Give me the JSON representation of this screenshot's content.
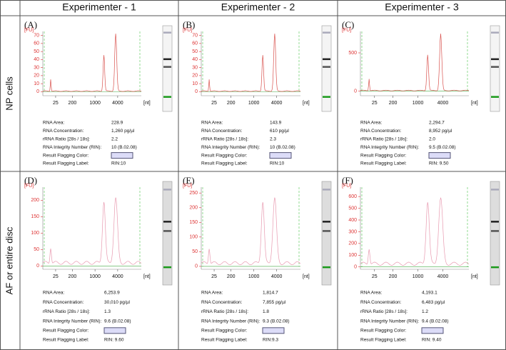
{
  "header": {
    "columns": [
      "Experimenter - 1",
      "Experimenter - 2",
      "Experimenter - 3"
    ]
  },
  "rows": [
    {
      "label": "NP cells",
      "panels": [
        {
          "label": "(A)",
          "yunit": "[FU]",
          "yticks": [
            0,
            10,
            20,
            30,
            40,
            50,
            60,
            70
          ],
          "ylim": [
            -5,
            75
          ],
          "xticks": [
            "25",
            "200",
            "1000",
            "4000"
          ],
          "xunit": "[nt]",
          "fields": [
            {
              "name": "RNA Area:",
              "value": "228.9"
            },
            {
              "name": "RNA Concentration:",
              "value": "1,260 pg/µl"
            },
            {
              "name": "rRNA Ratio [28s / 18s]:",
              "value": "2.2"
            },
            {
              "name": "RNA Integrity Number (RIN):",
              "value": "10    (B.02.08)"
            },
            {
              "name": "Result Flagging Color:",
              "swatch": "#dcdcf8"
            },
            {
              "name": "Result Flagging Label:",
              "value": "RIN:10"
            }
          ]
        },
        {
          "label": "(B)",
          "yunit": "[FU]",
          "yticks": [
            0,
            10,
            20,
            30,
            40,
            50,
            60,
            70
          ],
          "ylim": [
            -5,
            75
          ],
          "xticks": [
            "25",
            "200",
            "1000",
            "4000"
          ],
          "xunit": "[nt]",
          "fields": [
            {
              "name": "RNA Area:",
              "value": "143.9"
            },
            {
              "name": "RNA Concentration:",
              "value": "610 pg/µl"
            },
            {
              "name": "rRNA Ratio [28s / 18s]:",
              "value": "2.3"
            },
            {
              "name": "RNA Integrity Number (RIN):",
              "value": "10    (B.02.08)"
            },
            {
              "name": "Result Flagging Color:",
              "swatch": "#dcdcf8"
            },
            {
              "name": "Result Flagging Label:",
              "value": "RIN:10"
            }
          ]
        },
        {
          "label": "(C)",
          "yunit": "[FU]",
          "yticks": [
            0,
            500
          ],
          "ylim": [
            -60,
            780
          ],
          "xticks": [
            "25",
            "200",
            "1000",
            "4000"
          ],
          "xunit": "[nt]",
          "fields": [
            {
              "name": "RNA Area:",
              "value": "2,294.7"
            },
            {
              "name": "RNA Concentration:",
              "value": "8,952 pg/µl"
            },
            {
              "name": "rRNA Ratio [28s / 18s]:",
              "value": "2.0"
            },
            {
              "name": "RNA Integrity Number (RIN):",
              "value": "9.5    (B.02.08)"
            },
            {
              "name": "Result Flagging Color:",
              "swatch": "#dcdcf8"
            },
            {
              "name": "Result Flagging Label:",
              "value": "RIN: 9.50"
            }
          ]
        }
      ]
    },
    {
      "label": "AF or entire disc",
      "panels": [
        {
          "label": "(D)",
          "yunit": "[FU]",
          "yticks": [
            0,
            50,
            100,
            150,
            200
          ],
          "ylim": [
            -10,
            240
          ],
          "xticks": [
            "25",
            "200",
            "1000",
            "4000"
          ],
          "xunit": "[nt]",
          "fields": [
            {
              "name": "RNA Area:",
              "value": "6,253.9"
            },
            {
              "name": "RNA Concentration:",
              "value": "30,010 pg/µl"
            },
            {
              "name": "rRNA Ratio [28s / 18s]:",
              "value": "1.3"
            },
            {
              "name": "RNA Integrity Number (RIN):",
              "value": "9.6    (B.02.08)"
            },
            {
              "name": "Result Flagging Color:",
              "swatch": "#dcdcf8"
            },
            {
              "name": "Result Flagging Label:",
              "value": "RIN: 9.60"
            }
          ]
        },
        {
          "label": "(E)",
          "yunit": "[FU]",
          "yticks": [
            0,
            50,
            100,
            150,
            200,
            250
          ],
          "ylim": [
            -10,
            270
          ],
          "xticks": [
            "25",
            "200",
            "1000",
            "4000"
          ],
          "xunit": "[nt]",
          "fields": [
            {
              "name": "RNA Area:",
              "value": "1,814.7"
            },
            {
              "name": "RNA Concentration:",
              "value": "7,855 pg/µl"
            },
            {
              "name": "rRNA Ratio [28s / 18s]:",
              "value": "1.8"
            },
            {
              "name": "RNA Integrity Number (RIN):",
              "value": "9.3    (B.02.08)"
            },
            {
              "name": "Result Flagging Color:",
              "swatch": "#dcdcf8"
            },
            {
              "name": "Result Flagging Label:",
              "value": "RIN:9.3"
            }
          ]
        },
        {
          "label": "(F)",
          "yunit": "[FU]",
          "yticks": [
            0,
            100,
            200,
            300,
            400,
            500,
            600
          ],
          "ylim": [
            -20,
            680
          ],
          "xticks": [
            "25",
            "200",
            "1000",
            "4000"
          ],
          "xunit": "[nt]",
          "fields": [
            {
              "name": "RNA Area:",
              "value": "4,193.1"
            },
            {
              "name": "RNA Concentration:",
              "value": "6,483 pg/µl"
            },
            {
              "name": "rRNA Ratio [28s / 18s]:",
              "value": "1.2"
            },
            {
              "name": "RNA Integrity Number (RIN):",
              "value": "9.4    (B.02.08)"
            },
            {
              "name": "Result Flagging Color:",
              "swatch": "#dcdcf8"
            },
            {
              "name": "Result Flagging Label:",
              "value": "RIN: 9.40"
            }
          ]
        }
      ]
    }
  ]
}
